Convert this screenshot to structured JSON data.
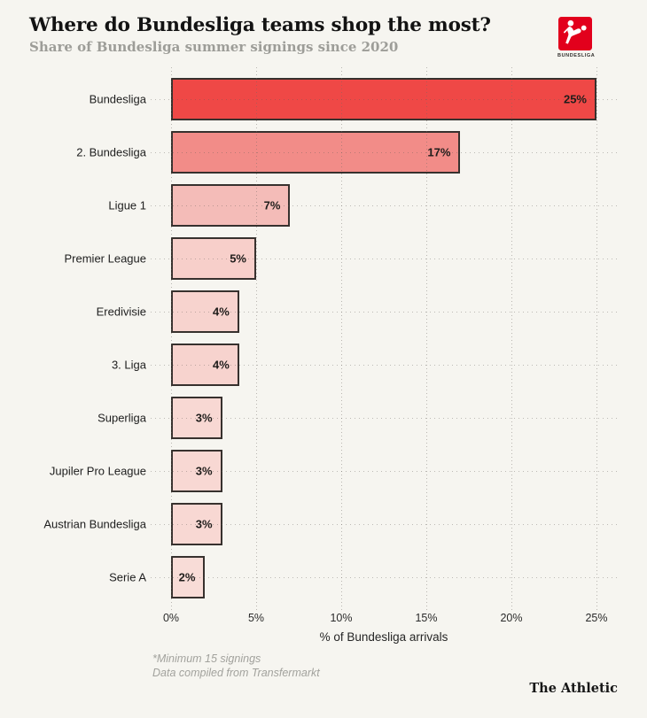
{
  "header": {
    "title": "Where do Bundesliga teams shop the most?",
    "subtitle": "Share of Bundesliga summer signings since 2020",
    "logo": {
      "icon": "bundesliga-logo",
      "caption": "BUNDESLIGA",
      "square_color": "#e2001c",
      "figure_color": "#ffffff"
    }
  },
  "chart_data": {
    "type": "bar",
    "orientation": "horizontal",
    "title": "Where do Bundesliga teams shop the most?",
    "subtitle": "Share of Bundesliga summer signings since 2020",
    "categories": [
      "Bundesliga",
      "2. Bundesliga",
      "Ligue 1",
      "Premier League",
      "Eredivisie",
      "3. Liga",
      "Superliga",
      "Jupiler Pro League",
      "Austrian Bundesliga",
      "Serie A"
    ],
    "values": [
      25,
      17,
      7,
      5,
      4,
      4,
      3,
      3,
      3,
      2
    ],
    "value_labels": [
      "25%",
      "17%",
      "7%",
      "5%",
      "4%",
      "4%",
      "3%",
      "3%",
      "3%",
      "2%"
    ],
    "bar_colors": [
      "#ef4846",
      "#f28c88",
      "#f4bcb8",
      "#f7cfca",
      "#f7d3ce",
      "#f7d3ce",
      "#f8d8d3",
      "#f8d8d3",
      "#f8d8d3",
      "#f8dcd7"
    ],
    "xlabel": "% of Bundesliga arrivals",
    "x_ticks": [
      "0%",
      "5%",
      "10%",
      "15%",
      "20%",
      "25%"
    ],
    "x_tick_values": [
      0,
      5,
      10,
      15,
      20,
      25
    ],
    "xlim": [
      0,
      25
    ],
    "grid": "dotted-vertical-and-row-leaders",
    "legend": "none"
  },
  "footer": {
    "note1": "*Minimum 15 signings",
    "note2": "Data compiled from Transfermarkt",
    "brand": "The Athletic"
  }
}
